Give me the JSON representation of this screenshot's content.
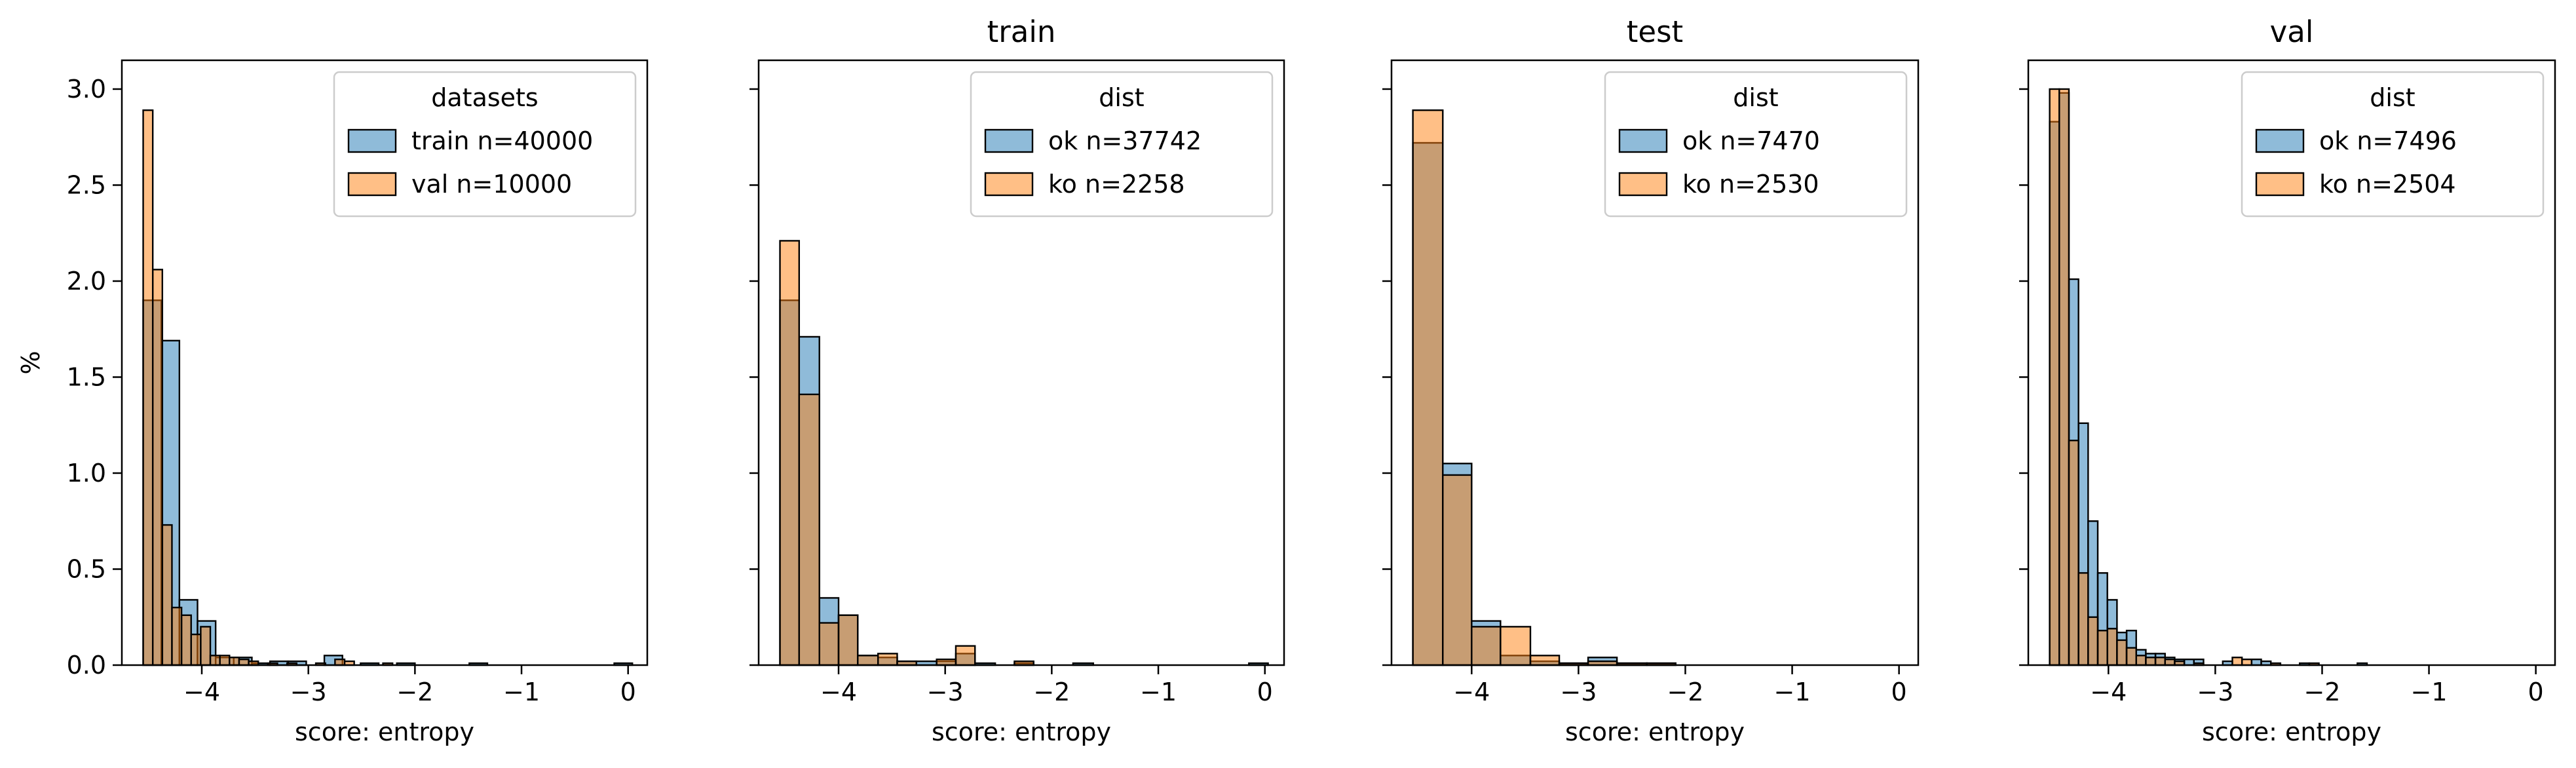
{
  "chart_data": [
    {
      "type": "histogram",
      "title": "",
      "xlabel": "score: entropy",
      "ylabel": "%",
      "xlim": [
        -4.75,
        0.18
      ],
      "ylim": [
        0,
        3.15
      ],
      "x_ticks": [
        -4,
        -3,
        -2,
        -1,
        0
      ],
      "x_tick_labels": [
        "−4",
        "−3",
        "−2",
        "−1",
        "0"
      ],
      "y_ticks": [
        0,
        0.5,
        1.0,
        1.5,
        2.0,
        2.5,
        3.0
      ],
      "y_tick_labels": [
        "0.0",
        "0.5",
        "1.0",
        "1.5",
        "2.0",
        "2.5",
        "3.0"
      ],
      "legend": {
        "title": "datasets",
        "placement": "top-right"
      },
      "series": [
        {
          "name": "train n=40000",
          "color": "#1f77b4",
          "bins": [
            [
              -4.55,
              -4.38,
              1.9
            ],
            [
              -4.38,
              -4.21,
              1.69
            ],
            [
              -4.21,
              -4.04,
              0.34
            ],
            [
              -4.04,
              -3.87,
              0.23
            ],
            [
              -3.87,
              -3.7,
              0.04
            ],
            [
              -3.7,
              -3.53,
              0.04
            ],
            [
              -3.53,
              -3.36,
              0.01
            ],
            [
              -3.36,
              -3.19,
              0.02
            ],
            [
              -3.19,
              -3.02,
              0.02
            ],
            [
              -2.85,
              -2.68,
              0.05
            ],
            [
              -2.51,
              -2.34,
              0.01
            ],
            [
              -2.17,
              -2.0,
              0.01
            ],
            [
              -1.49,
              -1.32,
              0.01
            ],
            [
              -0.13,
              0.04,
              0.01
            ]
          ]
        },
        {
          "name": "val n=10000",
          "color": "#ff7f0e",
          "bins": [
            [
              -4.55,
              -4.46,
              2.89
            ],
            [
              -4.46,
              -4.37,
              2.06
            ],
            [
              -4.37,
              -4.28,
              0.73
            ],
            [
              -4.28,
              -4.19,
              0.3
            ],
            [
              -4.19,
              -4.1,
              0.26
            ],
            [
              -4.1,
              -4.01,
              0.16
            ],
            [
              -4.01,
              -3.92,
              0.2
            ],
            [
              -3.92,
              -3.83,
              0.05
            ],
            [
              -3.83,
              -3.74,
              0.05
            ],
            [
              -3.74,
              -3.65,
              0.04
            ],
            [
              -3.65,
              -3.56,
              0.03
            ],
            [
              -3.56,
              -3.47,
              0.02
            ],
            [
              -3.38,
              -3.29,
              0.01
            ],
            [
              -3.2,
              -3.11,
              0.01
            ],
            [
              -2.93,
              -2.84,
              0.01
            ],
            [
              -2.75,
              -2.66,
              0.03
            ],
            [
              -2.66,
              -2.57,
              0.02
            ],
            [
              -2.3,
              -2.21,
              0.01
            ]
          ]
        }
      ]
    },
    {
      "type": "histogram",
      "title": "train",
      "xlabel": "score: entropy",
      "ylabel": "",
      "xlim": [
        -4.75,
        0.18
      ],
      "ylim": [
        0,
        3.15
      ],
      "x_ticks": [
        -4,
        -3,
        -2,
        -1,
        0
      ],
      "x_tick_labels": [
        "−4",
        "−3",
        "−2",
        "−1",
        "0"
      ],
      "legend": {
        "title": "dist",
        "placement": "top-right"
      },
      "series": [
        {
          "name": "ok n=37742",
          "color": "#1f77b4",
          "bins": [
            [
              -4.55,
              -4.37,
              1.9
            ],
            [
              -4.37,
              -4.18,
              1.71
            ],
            [
              -4.18,
              -4.0,
              0.35
            ],
            [
              -4.0,
              -3.82,
              0.26
            ],
            [
              -3.82,
              -3.63,
              0.05
            ],
            [
              -3.63,
              -3.45,
              0.04
            ],
            [
              -3.45,
              -3.27,
              0.02
            ],
            [
              -3.27,
              -3.08,
              0.02
            ],
            [
              -3.08,
              -2.9,
              0.02
            ],
            [
              -2.9,
              -2.72,
              0.06
            ],
            [
              -2.72,
              -2.53,
              0.01
            ],
            [
              -2.35,
              -2.17,
              0.01
            ],
            [
              -1.8,
              -1.61,
              0.01
            ],
            [
              -0.15,
              0.03,
              0.01
            ]
          ]
        },
        {
          "name": "ko n=2258",
          "color": "#ff7f0e",
          "bins": [
            [
              -4.55,
              -4.37,
              2.21
            ],
            [
              -4.37,
              -4.18,
              1.41
            ],
            [
              -4.18,
              -4.0,
              0.22
            ],
            [
              -4.0,
              -3.82,
              0.26
            ],
            [
              -3.82,
              -3.63,
              0.05
            ],
            [
              -3.63,
              -3.45,
              0.06
            ],
            [
              -3.45,
              -3.27,
              0.02
            ],
            [
              -3.08,
              -2.9,
              0.03
            ],
            [
              -2.9,
              -2.72,
              0.1
            ],
            [
              -2.35,
              -2.17,
              0.02
            ]
          ]
        }
      ]
    },
    {
      "type": "histogram",
      "title": "test",
      "xlabel": "score: entropy",
      "ylabel": "",
      "xlim": [
        -4.75,
        0.18
      ],
      "ylim": [
        0,
        3.15
      ],
      "x_ticks": [
        -4,
        -3,
        -2,
        -1,
        0
      ],
      "x_tick_labels": [
        "−4",
        "−3",
        "−2",
        "−1",
        "0"
      ],
      "legend": {
        "title": "dist",
        "placement": "top-right"
      },
      "series": [
        {
          "name": "ok n=7470",
          "color": "#1f77b4",
          "bins": [
            [
              -4.55,
              -4.27,
              2.72
            ],
            [
              -4.27,
              -4.0,
              1.05
            ],
            [
              -4.0,
              -3.73,
              0.23
            ],
            [
              -3.73,
              -3.45,
              0.05
            ],
            [
              -3.45,
              -3.18,
              0.02
            ],
            [
              -3.18,
              -2.91,
              0.01
            ],
            [
              -2.91,
              -2.64,
              0.04
            ],
            [
              -2.64,
              -2.36,
              0.01
            ],
            [
              -2.36,
              -2.09,
              0.01
            ]
          ]
        },
        {
          "name": "ko n=2530",
          "color": "#ff7f0e",
          "bins": [
            [
              -4.55,
              -4.27,
              2.89
            ],
            [
              -4.27,
              -4.0,
              0.99
            ],
            [
              -4.0,
              -3.73,
              0.2
            ],
            [
              -3.73,
              -3.45,
              0.2
            ],
            [
              -3.45,
              -3.18,
              0.05
            ],
            [
              -3.18,
              -2.91,
              0.01
            ],
            [
              -2.91,
              -2.64,
              0.02
            ],
            [
              -2.64,
              -2.36,
              0.01
            ],
            [
              -2.36,
              -2.09,
              0.01
            ]
          ]
        }
      ]
    },
    {
      "type": "histogram",
      "title": "val",
      "xlabel": "score: entropy",
      "ylabel": "",
      "xlim": [
        -4.75,
        0.18
      ],
      "ylim": [
        0,
        3.15
      ],
      "x_ticks": [
        -4,
        -3,
        -2,
        -1,
        0
      ],
      "x_tick_labels": [
        "−4",
        "−3",
        "−2",
        "−1",
        "0"
      ],
      "legend": {
        "title": "dist",
        "placement": "top-right"
      },
      "series": [
        {
          "name": "ok n=7496",
          "color": "#1f77b4",
          "bins": [
            [
              -4.55,
              -4.46,
              2.83
            ],
            [
              -4.46,
              -4.37,
              2.98
            ],
            [
              -4.37,
              -4.28,
              2.01
            ],
            [
              -4.28,
              -4.19,
              1.26
            ],
            [
              -4.19,
              -4.1,
              0.75
            ],
            [
              -4.1,
              -4.01,
              0.48
            ],
            [
              -4.01,
              -3.92,
              0.34
            ],
            [
              -3.92,
              -3.83,
              0.17
            ],
            [
              -3.83,
              -3.74,
              0.18
            ],
            [
              -3.74,
              -3.65,
              0.08
            ],
            [
              -3.65,
              -3.56,
              0.06
            ],
            [
              -3.56,
              -3.47,
              0.06
            ],
            [
              -3.47,
              -3.38,
              0.04
            ],
            [
              -3.38,
              -3.29,
              0.03
            ],
            [
              -3.29,
              -3.2,
              0.03
            ],
            [
              -3.2,
              -3.11,
              0.03
            ],
            [
              -2.93,
              -2.84,
              0.02
            ],
            [
              -2.66,
              -2.57,
              0.03
            ],
            [
              -2.57,
              -2.48,
              0.02
            ],
            [
              -2.21,
              -2.12,
              0.01
            ],
            [
              -1.67,
              -1.58,
              0.01
            ]
          ]
        },
        {
          "name": "ko n=2504",
          "color": "#ff7f0e",
          "bins": [
            [
              -4.55,
              -4.46,
              3.0
            ],
            [
              -4.46,
              -4.37,
              3.0
            ],
            [
              -4.37,
              -4.28,
              1.17
            ],
            [
              -4.28,
              -4.19,
              0.48
            ],
            [
              -4.19,
              -4.1,
              0.25
            ],
            [
              -4.1,
              -4.01,
              0.18
            ],
            [
              -4.01,
              -3.92,
              0.19
            ],
            [
              -3.92,
              -3.83,
              0.13
            ],
            [
              -3.83,
              -3.74,
              0.09
            ],
            [
              -3.74,
              -3.65,
              0.05
            ],
            [
              -3.65,
              -3.56,
              0.04
            ],
            [
              -3.56,
              -3.47,
              0.04
            ],
            [
              -3.47,
              -3.38,
              0.03
            ],
            [
              -3.38,
              -3.29,
              0.02
            ],
            [
              -3.2,
              -3.11,
              0.01
            ],
            [
              -2.84,
              -2.75,
              0.04
            ],
            [
              -2.75,
              -2.66,
              0.03
            ],
            [
              -2.48,
              -2.39,
              0.01
            ],
            [
              -2.12,
              -2.03,
              0.01
            ]
          ]
        }
      ]
    }
  ]
}
